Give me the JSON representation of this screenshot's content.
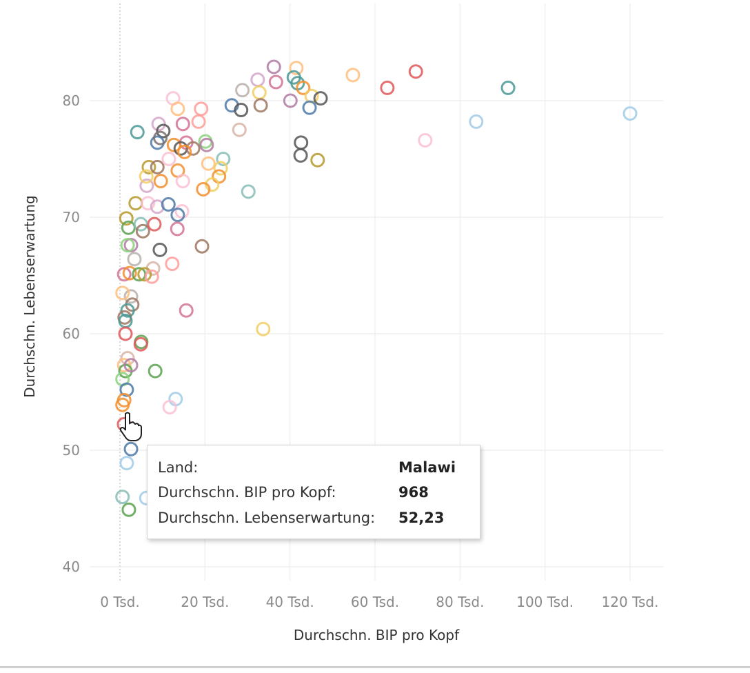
{
  "chart_data": {
    "type": "scatter",
    "xlabel": "Durchschn. BIP pro Kopf",
    "ylabel": "Durchschn. Lebenserwartung",
    "xlim": [
      -7,
      127
    ],
    "ylim": [
      39,
      86
    ],
    "x_ticks": [
      0,
      20,
      40,
      60,
      80,
      100,
      120
    ],
    "x_tick_labels": [
      "0 Tsd.",
      "20 Tsd.",
      "40 Tsd.",
      "60 Tsd.",
      "80 Tsd.",
      "100 Tsd.",
      "120 Tsd."
    ],
    "y_ticks": [
      40,
      50,
      60,
      70,
      80
    ],
    "y_tick_labels": [
      "40",
      "50",
      "60",
      "70",
      "80"
    ],
    "x_unit": "Tsd.",
    "grid": true,
    "marker": "open-circle",
    "palette": [
      "#4e79a7",
      "#a0cbe8",
      "#f28e2b",
      "#ffbe7d",
      "#59a14f",
      "#8cd17d",
      "#b6992d",
      "#f1ce63",
      "#499894",
      "#86bcb6",
      "#e15759",
      "#ff9d9a",
      "#79706e",
      "#bab0ac",
      "#d37295",
      "#fabfd2",
      "#b07aa1",
      "#d4a6c8",
      "#9d7660",
      "#d7b5a6",
      "#555555"
    ],
    "points": [
      [
        36.2,
        82.9,
        16
      ],
      [
        41.5,
        82.8,
        3
      ],
      [
        54.8,
        82.2,
        3
      ],
      [
        69.6,
        82.5,
        10
      ],
      [
        62.9,
        81.1,
        10
      ],
      [
        91.3,
        81.1,
        8
      ],
      [
        120,
        78.9,
        1
      ],
      [
        83.8,
        78.2,
        1
      ],
      [
        71.8,
        76.6,
        15
      ],
      [
        32.4,
        81.8,
        17
      ],
      [
        36.7,
        81.6,
        14
      ],
      [
        28.8,
        80.9,
        13
      ],
      [
        32.8,
        80.7,
        7
      ],
      [
        40.9,
        82.0,
        8
      ],
      [
        41.8,
        81.5,
        8
      ],
      [
        43.1,
        81.1,
        2
      ],
      [
        45.1,
        80.4,
        7
      ],
      [
        47.2,
        80.2,
        20
      ],
      [
        40.1,
        80.0,
        16
      ],
      [
        44.6,
        79.4,
        0
      ],
      [
        26.3,
        79.6,
        0
      ],
      [
        28.5,
        79.2,
        20
      ],
      [
        33.1,
        79.6,
        18
      ],
      [
        28.1,
        77.5,
        19
      ],
      [
        42.6,
        76.4,
        20
      ],
      [
        42.5,
        75.3,
        20
      ],
      [
        46.5,
        74.9,
        6
      ],
      [
        30.2,
        72.2,
        9
      ],
      [
        12.5,
        80.2,
        15
      ],
      [
        13.6,
        79.3,
        3
      ],
      [
        19.1,
        79.3,
        11
      ],
      [
        14.8,
        78.0,
        14
      ],
      [
        18.5,
        78.2,
        11
      ],
      [
        9.1,
        78.0,
        17
      ],
      [
        10.2,
        77.4,
        20
      ],
      [
        4.1,
        77.3,
        8
      ],
      [
        8.8,
        76.4,
        0
      ],
      [
        9.5,
        76.8,
        12
      ],
      [
        15.6,
        76.4,
        14
      ],
      [
        20.1,
        76.5,
        5
      ],
      [
        20.4,
        76.2,
        16
      ],
      [
        12.7,
        76.2,
        2
      ],
      [
        14.3,
        75.9,
        20
      ],
      [
        17.2,
        75.9,
        18
      ],
      [
        15.2,
        75.6,
        2
      ],
      [
        24.3,
        75.0,
        9
      ],
      [
        20.8,
        74.6,
        3
      ],
      [
        23.7,
        74.2,
        7
      ],
      [
        23.3,
        73.5,
        2
      ],
      [
        21.7,
        72.8,
        7
      ],
      [
        19.6,
        72.4,
        2
      ],
      [
        6.8,
        74.3,
        6
      ],
      [
        8.8,
        74.3,
        18
      ],
      [
        9.6,
        73.1,
        2
      ],
      [
        6.3,
        72.7,
        17
      ],
      [
        6.2,
        73.5,
        7
      ],
      [
        13.6,
        74.0,
        2
      ],
      [
        14.8,
        73.1,
        15
      ],
      [
        11.5,
        75.0,
        15
      ],
      [
        3.7,
        71.2,
        6
      ],
      [
        6.6,
        71.2,
        15
      ],
      [
        8.8,
        70.9,
        17
      ],
      [
        11.4,
        71.1,
        0
      ],
      [
        14.6,
        70.5,
        15
      ],
      [
        13.6,
        70.2,
        0
      ],
      [
        1.5,
        69.9,
        6
      ],
      [
        2.0,
        69.1,
        4
      ],
      [
        4.9,
        69.4,
        9
      ],
      [
        5.4,
        68.8,
        18
      ],
      [
        8.1,
        69.4,
        10
      ],
      [
        13.5,
        69.0,
        14
      ],
      [
        2.6,
        67.6,
        16
      ],
      [
        1.8,
        67.6,
        5
      ],
      [
        9.4,
        67.2,
        20
      ],
      [
        19.3,
        67.5,
        18
      ],
      [
        3.4,
        66.4,
        13
      ],
      [
        12.3,
        66.0,
        11
      ],
      [
        7.8,
        65.6,
        19
      ],
      [
        1.0,
        65.1,
        14
      ],
      [
        2.3,
        65.2,
        2
      ],
      [
        4.5,
        65.1,
        4
      ],
      [
        5.8,
        65.1,
        6
      ],
      [
        7.5,
        64.9,
        11
      ],
      [
        2.6,
        63.2,
        13
      ],
      [
        0.6,
        63.5,
        3
      ],
      [
        2.9,
        62.5,
        18
      ],
      [
        1.8,
        62.0,
        8
      ],
      [
        15.6,
        62.0,
        14
      ],
      [
        1.1,
        61.4,
        18
      ],
      [
        1.3,
        61.1,
        8
      ],
      [
        1.3,
        60.0,
        10
      ],
      [
        5.0,
        59.3,
        4
      ],
      [
        4.9,
        59.1,
        10
      ],
      [
        33.7,
        60.4,
        7
      ],
      [
        1.8,
        57.9,
        19
      ],
      [
        1.0,
        57.3,
        3
      ],
      [
        1.3,
        56.8,
        4
      ],
      [
        8.3,
        56.8,
        4
      ],
      [
        2.6,
        57.3,
        16
      ],
      [
        0.6,
        56.1,
        5
      ],
      [
        1.6,
        55.2,
        0
      ],
      [
        1.0,
        54.3,
        2
      ],
      [
        0.6,
        53.9,
        2
      ],
      [
        13.1,
        54.4,
        1
      ],
      [
        11.7,
        53.7,
        15
      ],
      [
        0.968,
        52.23,
        10
      ],
      [
        2.6,
        50.1,
        0
      ],
      [
        1.6,
        48.9,
        1
      ],
      [
        0.6,
        46.0,
        9
      ],
      [
        2.1,
        44.9,
        4
      ],
      [
        6.2,
        45.9,
        1
      ]
    ]
  },
  "tooltip": {
    "rows": [
      {
        "label": "Land:",
        "value": "Malawi"
      },
      {
        "label": "Durchschn. BIP pro Kopf:",
        "value": "968"
      },
      {
        "label": "Durchschn. Lebenserwartung:",
        "value": "52,23"
      }
    ]
  }
}
